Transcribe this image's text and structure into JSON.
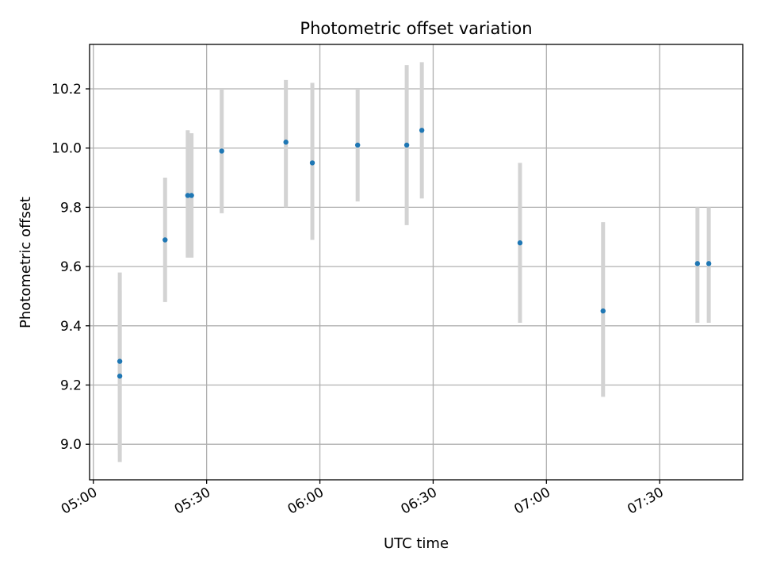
{
  "chart_data": {
    "type": "scatter",
    "title": "Photometric offset variation",
    "xlabel": "UTC time",
    "ylabel": "Photometric offset",
    "x_ticks": [
      "05:00",
      "05:30",
      "06:00",
      "06:30",
      "07:00",
      "07:30"
    ],
    "y_ticks": [
      "9.0",
      "9.2",
      "9.4",
      "9.6",
      "9.8",
      "10.0",
      "10.2"
    ],
    "xlim": [
      "04:59",
      "07:52"
    ],
    "ylim": [
      8.88,
      10.35
    ],
    "grid": true,
    "colors": {
      "point": "#1f77b4",
      "errorbar": "#d3d3d3",
      "grid": "#b0b0b0"
    },
    "points": [
      {
        "time": "05:07",
        "y": 9.23,
        "low": 8.94,
        "high": 9.52
      },
      {
        "time": "05:07",
        "y": 9.28,
        "low": 8.98,
        "high": 9.58
      },
      {
        "time": "05:19",
        "y": 9.69,
        "low": 9.48,
        "high": 9.9
      },
      {
        "time": "05:25",
        "y": 9.84,
        "low": 9.63,
        "high": 10.06
      },
      {
        "time": "05:26",
        "y": 9.84,
        "low": 9.63,
        "high": 10.05
      },
      {
        "time": "05:34",
        "y": 9.99,
        "low": 9.78,
        "high": 10.2
      },
      {
        "time": "05:51",
        "y": 10.02,
        "low": 9.8,
        "high": 10.23
      },
      {
        "time": "05:58",
        "y": 9.95,
        "low": 9.69,
        "high": 10.22
      },
      {
        "time": "06:10",
        "y": 10.01,
        "low": 9.82,
        "high": 10.2
      },
      {
        "time": "06:23",
        "y": 10.01,
        "low": 9.74,
        "high": 10.28
      },
      {
        "time": "06:27",
        "y": 10.06,
        "low": 9.83,
        "high": 10.29
      },
      {
        "time": "06:53",
        "y": 9.68,
        "low": 9.41,
        "high": 9.95
      },
      {
        "time": "07:15",
        "y": 9.45,
        "low": 9.16,
        "high": 9.75
      },
      {
        "time": "07:40",
        "y": 9.61,
        "low": 9.41,
        "high": 9.8
      },
      {
        "time": "07:43",
        "y": 9.61,
        "low": 9.41,
        "high": 9.8
      }
    ]
  }
}
